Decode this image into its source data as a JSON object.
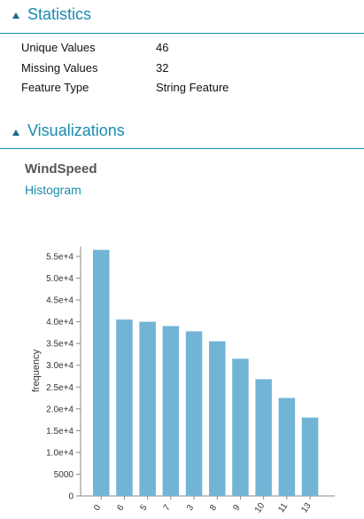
{
  "statistics": {
    "header": "Statistics",
    "rows": [
      {
        "key": "Unique Values",
        "value": "46"
      },
      {
        "key": "Missing Values",
        "value": "32"
      },
      {
        "key": "Feature Type",
        "value": "String Feature"
      }
    ]
  },
  "visualizations": {
    "header": "Visualizations",
    "feature_name": "WindSpeed",
    "visualization_type": "Histogram"
  },
  "colors": {
    "accent": "#1a8bb0",
    "bar": "#72b4d6"
  },
  "chart_data": {
    "type": "bar",
    "categories": [
      "0",
      "6",
      "5",
      "7",
      "3",
      "8",
      "9",
      "10",
      "11",
      "13"
    ],
    "values": [
      56500,
      40500,
      40000,
      39000,
      37800,
      35500,
      31500,
      26800,
      22500,
      18000
    ],
    "ylabel": "frequency",
    "xlabel": "",
    "ylim": [
      0,
      58000
    ],
    "yticks": [
      0,
      5000,
      10000,
      15000,
      20000,
      25000,
      30000,
      35000,
      40000,
      45000,
      50000,
      55000
    ],
    "ytick_labels": [
      "0",
      "5000",
      "1.0e+4",
      "1.5e+4",
      "2.0e+4",
      "2.5e+4",
      "3.0e+4",
      "3.5e+4",
      "4.0e+4",
      "4.5e+4",
      "5.0e+4",
      "5.5e+4"
    ],
    "grid": false
  }
}
